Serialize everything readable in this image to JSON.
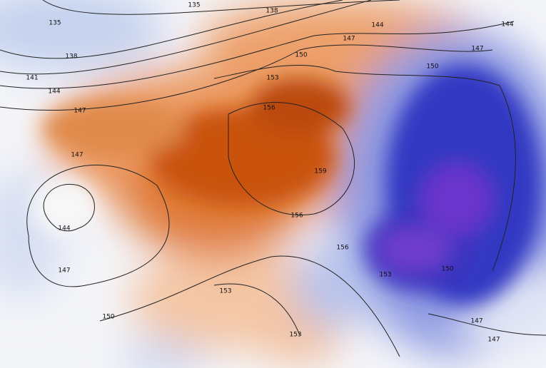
{
  "map": {
    "colors": {
      "warm_strong": "#c8500a",
      "warm_mid": "#e8894a",
      "warm_light": "#f3c3a0",
      "neutral": "#f7f7f7",
      "cool_light": "#c9d4ee",
      "cool_mid": "#5f6fd6",
      "cool_strong": "#2a2fb8",
      "cool_deep": "#6a33c9"
    },
    "contour_labels": [
      "135",
      "135",
      "138",
      "138",
      "141",
      "144",
      "147",
      "147",
      "144",
      "147",
      "150",
      "144",
      "144",
      "147",
      "147",
      "150",
      "150",
      "153",
      "156",
      "159",
      "156",
      "156",
      "153",
      "150",
      "153",
      "153",
      "147",
      "147"
    ]
  }
}
